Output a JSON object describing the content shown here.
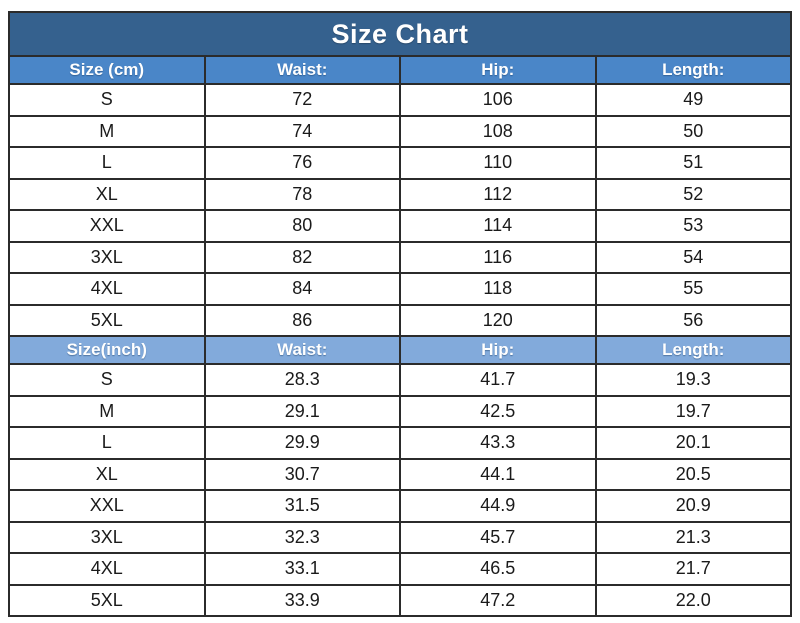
{
  "title": "Size Chart",
  "colors": {
    "title_bg": "#35618E",
    "header_cm_bg": "#4A86C8",
    "header_inch_bg": "#82AADB",
    "border": "#2B2B2B",
    "header_text": "#FFFFFF",
    "cell_text": "#1A1A1A"
  },
  "chart_data": {
    "type": "table",
    "title": "Size Chart",
    "sections": [
      {
        "unit": "cm",
        "header": [
          "Size (cm)",
          "Waist:",
          "Hip:",
          "Length:"
        ],
        "rows": [
          [
            "S",
            "72",
            "106",
            "49"
          ],
          [
            "M",
            "74",
            "108",
            "50"
          ],
          [
            "L",
            "76",
            "110",
            "51"
          ],
          [
            "XL",
            "78",
            "112",
            "52"
          ],
          [
            "XXL",
            "80",
            "114",
            "53"
          ],
          [
            "3XL",
            "82",
            "116",
            "54"
          ],
          [
            "4XL",
            "84",
            "118",
            "55"
          ],
          [
            "5XL",
            "86",
            "120",
            "56"
          ]
        ]
      },
      {
        "unit": "inch",
        "header": [
          "Size(inch)",
          "Waist:",
          "Hip:",
          "Length:"
        ],
        "rows": [
          [
            "S",
            "28.3",
            "41.7",
            "19.3"
          ],
          [
            "M",
            "29.1",
            "42.5",
            "19.7"
          ],
          [
            "L",
            "29.9",
            "43.3",
            "20.1"
          ],
          [
            "XL",
            "30.7",
            "44.1",
            "20.5"
          ],
          [
            "XXL",
            "31.5",
            "44.9",
            "20.9"
          ],
          [
            "3XL",
            "32.3",
            "45.7",
            "21.3"
          ],
          [
            "4XL",
            "33.1",
            "46.5",
            "21.7"
          ],
          [
            "5XL",
            "33.9",
            "47.2",
            "22.0"
          ]
        ]
      }
    ]
  }
}
